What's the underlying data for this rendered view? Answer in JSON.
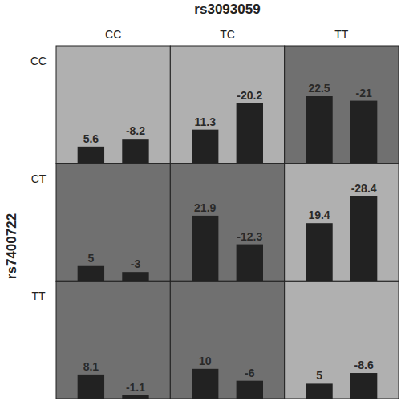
{
  "chart_data": {
    "type": "bar",
    "x_label": "rs3093059",
    "y_label": "rs7400722",
    "columns": [
      "CC",
      "TC",
      "TT"
    ],
    "rows": [
      "CC",
      "CT",
      "TT"
    ],
    "color": "#222222",
    "data_labels": true,
    "tick_labels": false,
    "cells": [
      [
        {
          "values": [
            5.6,
            -8.2
          ],
          "color": "#b0b0b0"
        },
        {
          "values": [
            11.3,
            -20.2
          ],
          "color": "#b0b0b0"
        },
        {
          "values": [
            22.5,
            -21.0
          ],
          "color": "#707070"
        }
      ],
      [
        {
          "values": [
            5.0,
            -3.0
          ],
          "color": "#707070"
        },
        {
          "values": [
            21.9,
            -12.3
          ],
          "color": "#707070"
        },
        {
          "values": [
            19.4,
            -28.4
          ],
          "color": "#b0b0b0"
        }
      ],
      [
        {
          "values": [
            8.1,
            -1.1
          ],
          "color": "#707070"
        },
        {
          "values": [
            10.0,
            -6.0
          ],
          "color": "#707070"
        },
        {
          "values": [
            5.0,
            -8.6
          ],
          "color": "#b0b0b0"
        }
      ]
    ]
  }
}
